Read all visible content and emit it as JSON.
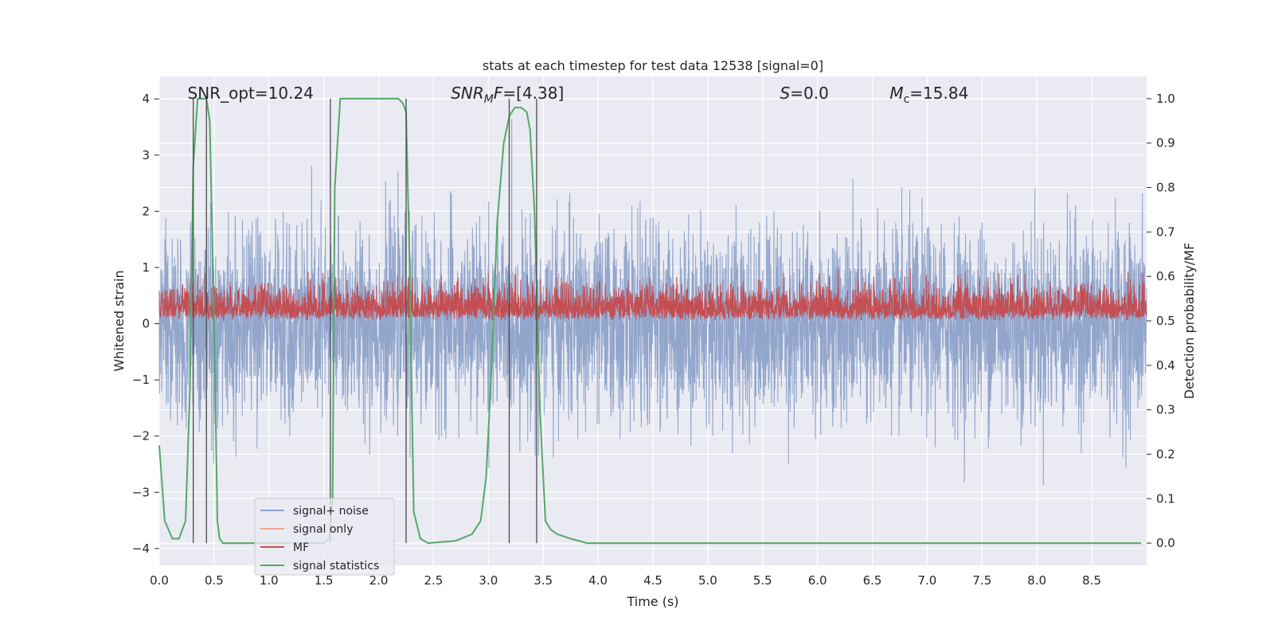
{
  "chart_data": {
    "type": "line",
    "title": "stats at each timestep for test data 12538 [signal=0]",
    "xlabel": "Time (s)",
    "ylabel": "Whitened strain",
    "ylabel_right": "Detection probability/MF",
    "xlim": [
      0.0,
      9.0
    ],
    "ylim": [
      -4.3,
      4.4
    ],
    "ylim_right": [
      -0.05,
      1.05
    ],
    "x_ticks": [
      "0.0",
      "0.5",
      "1.0",
      "1.5",
      "2.0",
      "2.5",
      "3.0",
      "3.5",
      "4.0",
      "4.5",
      "5.0",
      "5.5",
      "6.0",
      "6.5",
      "7.0",
      "7.5",
      "8.0",
      "8.5"
    ],
    "y_ticks": [
      "-4",
      "-3",
      "-2",
      "-1",
      "0",
      "1",
      "2",
      "3",
      "4"
    ],
    "y_right_ticks": [
      "0.0",
      "0.1",
      "0.2",
      "0.3",
      "0.4",
      "0.5",
      "0.6",
      "0.7",
      "0.8",
      "0.9",
      "1.0"
    ],
    "grid": true,
    "legend_position": "lower-left",
    "annotations": [
      {
        "text": "SNR_opt=10.24",
        "x": 0.2,
        "y": 4.1
      },
      {
        "text": "SNR_MF=[4.38]",
        "x": 2.6,
        "y": 4.1
      },
      {
        "text": "S=0.0",
        "x": 5.6,
        "y": 4.1
      },
      {
        "text": "M_c=15.84",
        "x": 6.6,
        "y": 4.1
      }
    ],
    "series": [
      {
        "name": "signal+ noise",
        "color": "#8da2c9",
        "axis": "left",
        "description": "noisy whitened strain, roughly -2.5 to 2.5 with spikes near ±4"
      },
      {
        "name": "signal only",
        "color": "#e9a88a",
        "axis": "left",
        "values": []
      },
      {
        "name": "MF",
        "color": "#c44e52",
        "axis": "right",
        "description": "matched filter output, about 0.5 to 0.62"
      },
      {
        "name": "signal statistics",
        "color": "#55a868",
        "axis": "right",
        "x": [
          0.0,
          0.05,
          0.12,
          0.18,
          0.24,
          0.28,
          0.31,
          0.35,
          0.38,
          0.43,
          0.46,
          0.5,
          0.53,
          0.55,
          0.58,
          1.5,
          1.55,
          1.58,
          1.6,
          1.65,
          2.15,
          2.18,
          2.22,
          2.25,
          2.28,
          2.32,
          2.38,
          2.45,
          2.7,
          2.85,
          2.93,
          2.98,
          3.03,
          3.08,
          3.14,
          3.19,
          3.24,
          3.3,
          3.35,
          3.38,
          3.42,
          3.47,
          3.52,
          3.57,
          3.63,
          3.75,
          3.9,
          4.0,
          8.95
        ],
        "values": [
          0.22,
          0.05,
          0.01,
          0.01,
          0.05,
          0.35,
          0.85,
          1.0,
          1.0,
          1.0,
          0.95,
          0.5,
          0.05,
          0.01,
          0.0,
          0.0,
          0.01,
          0.1,
          0.8,
          1.0,
          1.0,
          1.0,
          0.99,
          0.97,
          0.65,
          0.07,
          0.01,
          0.0,
          0.005,
          0.02,
          0.05,
          0.15,
          0.4,
          0.72,
          0.9,
          0.96,
          0.98,
          0.98,
          0.97,
          0.93,
          0.75,
          0.3,
          0.05,
          0.03,
          0.02,
          0.01,
          0.0,
          0.0,
          0.0
        ]
      },
      {
        "name": "",
        "color": "#4c4c4c",
        "type": "vlines",
        "x": [
          0.31,
          0.43,
          1.56,
          2.25,
          3.19,
          3.44
        ],
        "ymin_right": 0.0,
        "ymax_right": 1.0
      }
    ]
  }
}
